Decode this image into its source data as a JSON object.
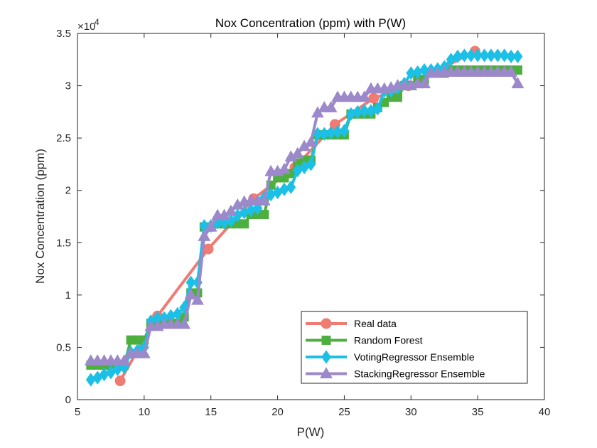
{
  "chart_data": {
    "type": "line",
    "title": "Nox Concentration (ppm) with P(W)",
    "xlabel": "P(W)",
    "ylabel": "Nox Concentration (ppm)",
    "exponent_label": "×10",
    "exponent_power": "4",
    "xlim": [
      5,
      40
    ],
    "ylim": [
      0,
      35000
    ],
    "x_ticks": [
      5,
      10,
      15,
      20,
      25,
      30,
      35,
      40
    ],
    "x_tick_labels": [
      "5",
      "10",
      "15",
      "20",
      "25",
      "30",
      "35",
      "40"
    ],
    "y_ticks": [
      0,
      5000,
      10000,
      15000,
      20000,
      25000,
      30000,
      35000
    ],
    "y_tick_labels": [
      "0",
      "0.5",
      "1",
      "1.5",
      "2",
      "2.5",
      "3",
      "3.5"
    ],
    "legend_position": "bottom-right",
    "grid": false,
    "series": [
      {
        "name": "Real data",
        "color": "#ef7b72",
        "marker": "circle",
        "x": [
          8.2,
          11.0,
          14.8,
          18.2,
          21.3,
          24.3,
          27.2,
          29.8,
          34.8
        ],
        "y": [
          1800,
          8000,
          14400,
          19200,
          22200,
          26300,
          28800,
          30000,
          33300
        ]
      },
      {
        "name": "Random Forest",
        "color": "#4caf3e",
        "marker": "square",
        "x": [
          6,
          6.5,
          7,
          7.5,
          8,
          8.5,
          9,
          9.5,
          10,
          10.5,
          11,
          11.5,
          12,
          12.5,
          13,
          13.5,
          14,
          14.5,
          15,
          15.5,
          16,
          16.5,
          17,
          17.5,
          18,
          18.5,
          19,
          19.5,
          20,
          20.5,
          21,
          21.5,
          22,
          22.5,
          23,
          23.5,
          24,
          24.5,
          25,
          25.5,
          26,
          26.5,
          27,
          27.5,
          28,
          28.5,
          29,
          29.5,
          30,
          30.5,
          31,
          31.5,
          32,
          32.5,
          33,
          33.5,
          34,
          34.5,
          35,
          35.5,
          36,
          36.5,
          37,
          37.5,
          38
        ],
        "y": [
          3300,
          3300,
          3300,
          3300,
          3300,
          3300,
          5700,
          5700,
          5700,
          7300,
          7300,
          7300,
          7300,
          7300,
          7900,
          10200,
          10200,
          16500,
          16500,
          16800,
          16800,
          16800,
          16800,
          16800,
          17700,
          17700,
          17700,
          20500,
          21200,
          21200,
          21600,
          22600,
          22900,
          22900,
          25300,
          25300,
          25300,
          25300,
          25300,
          27300,
          27300,
          27300,
          27300,
          27900,
          28400,
          28900,
          28900,
          30000,
          30000,
          30600,
          30600,
          31200,
          31200,
          31200,
          31500,
          31500,
          31500,
          31500,
          31500,
          31500,
          31500,
          31500,
          31500,
          31500,
          31500
        ]
      },
      {
        "name": "VotingRegressor Ensemble",
        "color": "#1cc0e6",
        "marker": "diamond",
        "x": [
          6,
          6.5,
          7,
          7.5,
          8,
          8.5,
          9,
          9.5,
          10,
          10.5,
          11,
          11.5,
          12,
          12.5,
          13,
          13.5,
          14,
          14.5,
          15,
          15.5,
          16,
          16.5,
          17,
          17.5,
          18,
          18.5,
          19,
          19.5,
          20,
          20.5,
          21,
          21.5,
          22,
          22.5,
          23,
          23.5,
          24,
          24.5,
          25,
          25.5,
          26,
          26.5,
          27,
          27.5,
          28,
          28.5,
          29,
          29.5,
          30,
          30.5,
          31,
          31.5,
          32,
          32.5,
          33,
          33.5,
          34,
          34.5,
          35,
          35.5,
          36,
          36.5,
          37,
          37.5,
          38
        ],
        "y": [
          1900,
          2100,
          2400,
          2600,
          2900,
          3100,
          4500,
          4700,
          5000,
          7500,
          7800,
          7800,
          8000,
          8200,
          8800,
          11200,
          11200,
          16600,
          16600,
          16900,
          16900,
          17100,
          17600,
          17900,
          18100,
          18300,
          19300,
          19600,
          19800,
          20100,
          20300,
          21900,
          22200,
          22500,
          25400,
          25400,
          25500,
          25600,
          25700,
          27300,
          27500,
          27600,
          27600,
          27800,
          29500,
          29500,
          29800,
          30200,
          31200,
          31300,
          31500,
          31500,
          31600,
          31800,
          32500,
          32800,
          32900,
          32900,
          32900,
          32900,
          32900,
          32900,
          32900,
          32800,
          32800
        ]
      },
      {
        "name": "StackingRegressor Ensemble",
        "color": "#9b89c9",
        "marker": "triangle",
        "x": [
          6,
          6.5,
          7,
          7.5,
          8,
          8.5,
          9,
          9.5,
          10,
          10.5,
          11,
          11.5,
          12,
          12.5,
          13,
          13.5,
          14,
          14.5,
          15,
          15.5,
          16,
          16.5,
          17,
          17.5,
          18,
          18.5,
          19,
          19.5,
          20,
          20.5,
          21,
          21.5,
          22,
          22.5,
          23,
          23.5,
          24,
          24.5,
          25,
          25.5,
          26,
          26.5,
          27,
          27.5,
          28,
          28.5,
          29,
          29.5,
          30,
          30.5,
          31,
          31.5,
          32,
          32.5,
          33,
          33.5,
          34,
          34.5,
          35,
          35.5,
          36,
          36.5,
          37,
          37.5,
          38
        ],
        "y": [
          3700,
          3700,
          3700,
          3700,
          3700,
          3700,
          4400,
          4400,
          4400,
          7000,
          7000,
          7200,
          7200,
          7200,
          7200,
          10000,
          9500,
          15600,
          16500,
          17600,
          17600,
          18000,
          18600,
          18900,
          19000,
          19000,
          19000,
          21800,
          21800,
          22000,
          23200,
          23500,
          24200,
          24600,
          27400,
          27900,
          27900,
          28900,
          28900,
          28900,
          28900,
          28900,
          29700,
          29700,
          29700,
          29800,
          30000,
          30000,
          30000,
          30200,
          30200,
          31200,
          31200,
          31300,
          31300,
          31300,
          31300,
          31300,
          31300,
          31300,
          31300,
          31300,
          31300,
          31300,
          30200
        ]
      }
    ]
  }
}
